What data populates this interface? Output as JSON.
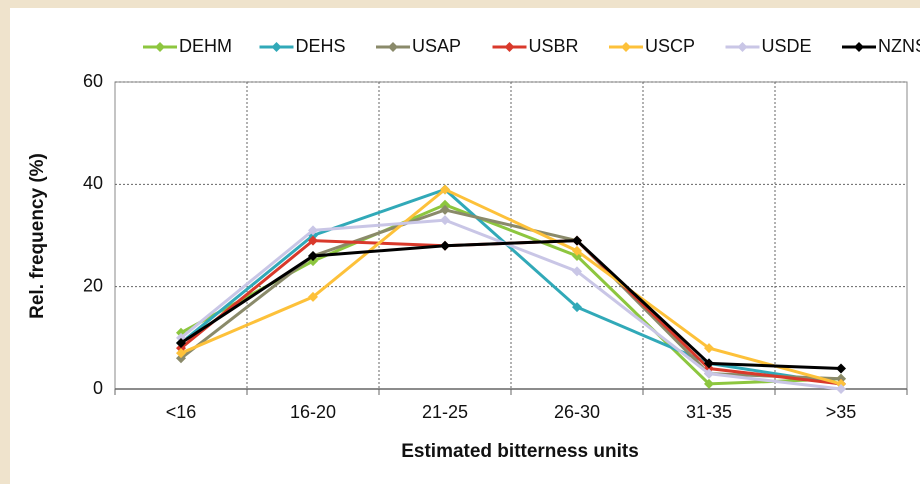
{
  "chart_data": {
    "type": "line",
    "x_label": "Estimated bitterness units",
    "y_label": "Rel. frequency (%)",
    "categories": [
      "<16",
      "16-20",
      "21-25",
      "26-30",
      "31-35",
      ">35"
    ],
    "series": [
      {
        "name": "DEHM",
        "color": "#8dc63f",
        "values": [
          11,
          25,
          36,
          26,
          1,
          2
        ]
      },
      {
        "name": "DEHS",
        "color": "#31a9b8",
        "values": [
          9,
          30,
          39,
          16,
          5,
          1
        ]
      },
      {
        "name": "USAP",
        "color": "#8a8a6a",
        "values": [
          6,
          26,
          35,
          29,
          3,
          2
        ]
      },
      {
        "name": "USBR",
        "color": "#d9392b",
        "values": [
          8,
          29,
          28,
          29,
          4,
          1
        ]
      },
      {
        "name": "USCP",
        "color": "#fdc13a",
        "values": [
          7,
          18,
          39,
          27,
          8,
          1
        ]
      },
      {
        "name": "USDE",
        "color": "#c9c6e6",
        "values": [
          10,
          31,
          33,
          23,
          3,
          0
        ]
      },
      {
        "name": "NZNS",
        "color": "#000000",
        "values": [
          9,
          26,
          28,
          29,
          5,
          4
        ]
      }
    ],
    "ylim": [
      0,
      60
    ],
    "yticks": [
      0,
      20,
      40,
      60
    ],
    "grid": true
  }
}
